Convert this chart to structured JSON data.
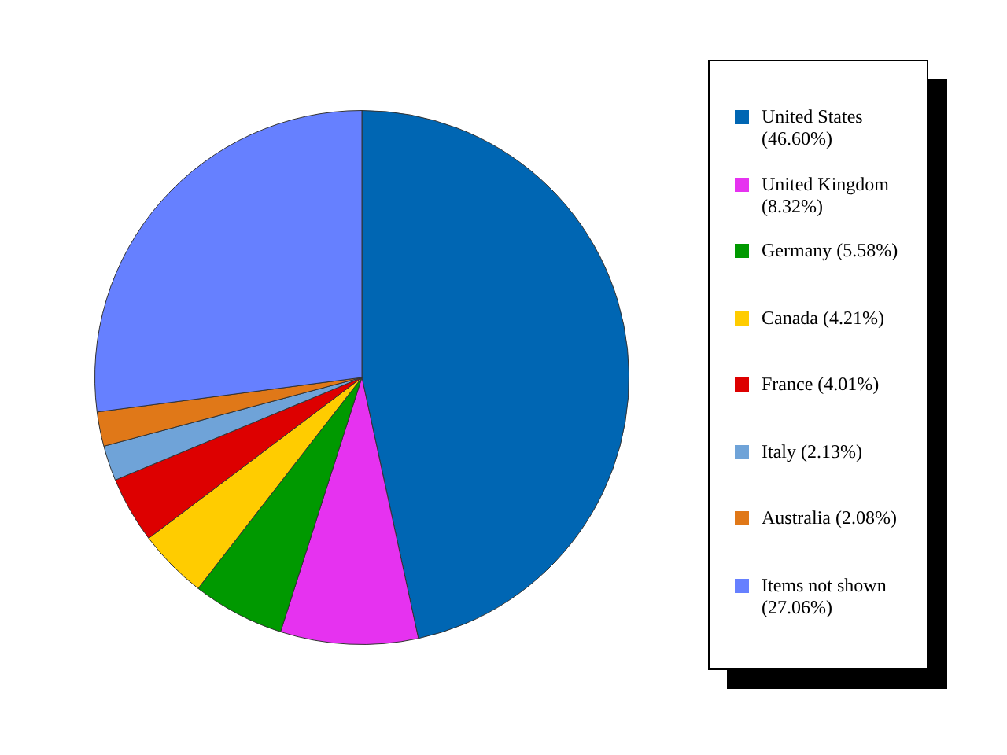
{
  "chart_data": {
    "type": "pie",
    "categories": [
      "United States (46.60%)",
      "United Kingdom (8.32%)",
      "Germany (5.58%)",
      "Canada (4.21%)",
      "France (4.01%)",
      "Italy (2.13%)",
      "Australia (2.08%)",
      "Items not shown (27.06%)"
    ],
    "values": [
      46.6,
      8.32,
      5.58,
      4.21,
      4.01,
      2.13,
      2.08,
      27.06
    ],
    "colors": [
      "#0066b3",
      "#e632f0",
      "#009900",
      "#ffcc00",
      "#dd0000",
      "#6fa3d8",
      "#e07818",
      "#6680ff"
    ],
    "legend": "right"
  }
}
